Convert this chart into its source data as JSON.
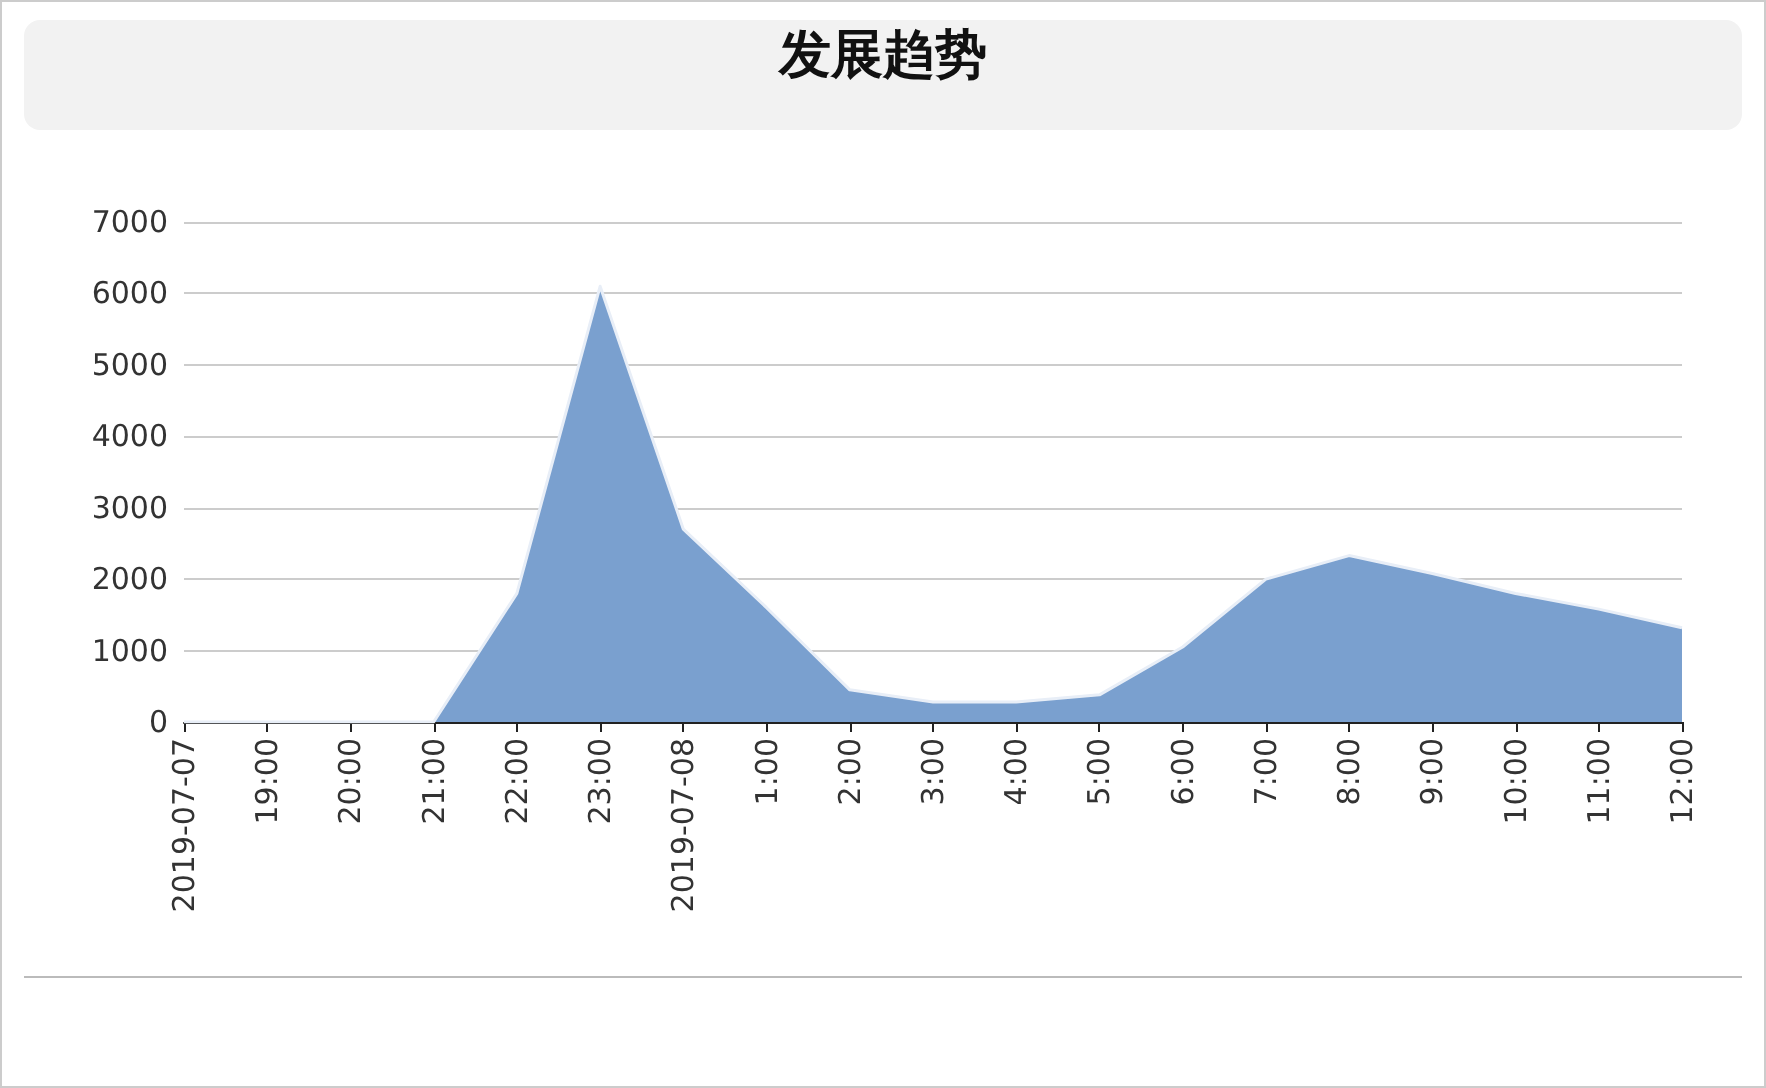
{
  "chart_data": {
    "type": "area",
    "title": "发展趋势",
    "categories": [
      "2019-07-07",
      "19:00",
      "20:00",
      "21:00",
      "22:00",
      "23:00",
      "2019-07-08",
      "1:00",
      "2:00",
      "3:00",
      "4:00",
      "5:00",
      "6:00",
      "7:00",
      "8:00",
      "9:00",
      "10:00",
      "11:00",
      "12:00"
    ],
    "series": [
      {
        "color": "#7aa0cf",
        "values": [
          0,
          0,
          0,
          0,
          1800,
          6100,
          2700,
          1600,
          450,
          280,
          280,
          380,
          1050,
          2000,
          2330,
          2080,
          1800,
          1580,
          1320
        ]
      }
    ],
    "ylim": [
      0,
      7000
    ],
    "yticks": [
      0,
      1000,
      2000,
      3000,
      4000,
      5000,
      6000,
      7000
    ],
    "grid": "y",
    "marker": "none",
    "line_style": "solid"
  }
}
